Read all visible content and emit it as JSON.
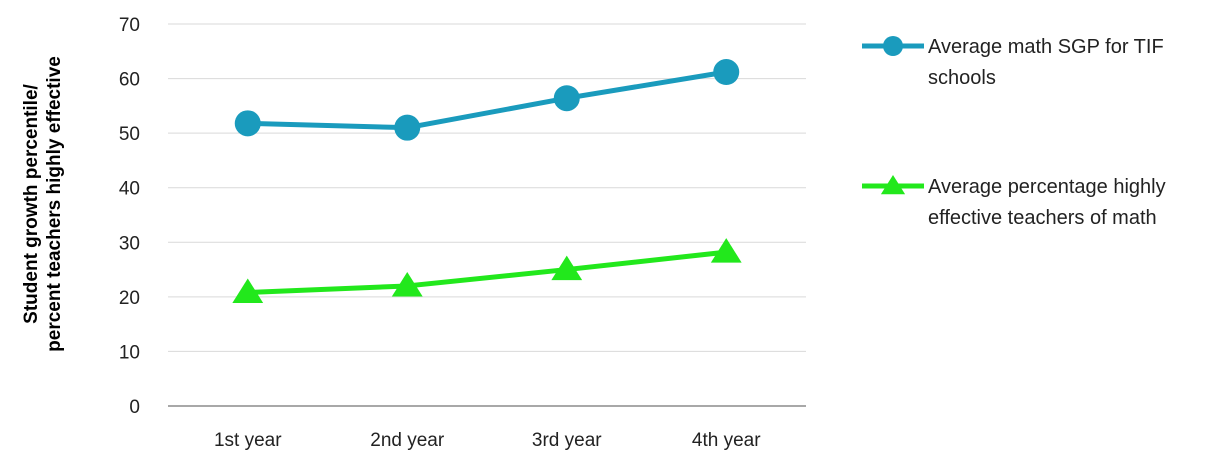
{
  "chart_data": {
    "type": "line",
    "categories": [
      "1st year",
      "2nd year",
      "3rd year",
      "4th year"
    ],
    "series": [
      {
        "name": "Average math SGP for TIF schools",
        "values": [
          51.8,
          51.0,
          56.4,
          61.2
        ],
        "color": "#1A9BBD",
        "marker": "circle"
      },
      {
        "name": "Average percentage highly effective teachers of math",
        "values": [
          20.8,
          22.0,
          25.0,
          28.2
        ],
        "color": "#22E81C",
        "marker": "triangle"
      }
    ],
    "ylabel_lines": [
      "Student growth percentile/",
      "percent teachers highly effective"
    ],
    "yticks": [
      "0",
      "10",
      "20",
      "30",
      "40",
      "50",
      "60",
      "70"
    ],
    "ylim": [
      0,
      70
    ],
    "grid": true,
    "legend_position": "right",
    "legend_lines": [
      [
        "Average math SGP for TIF",
        "schools"
      ],
      [
        "Average percentage highly",
        "effective teachers of math"
      ]
    ]
  }
}
